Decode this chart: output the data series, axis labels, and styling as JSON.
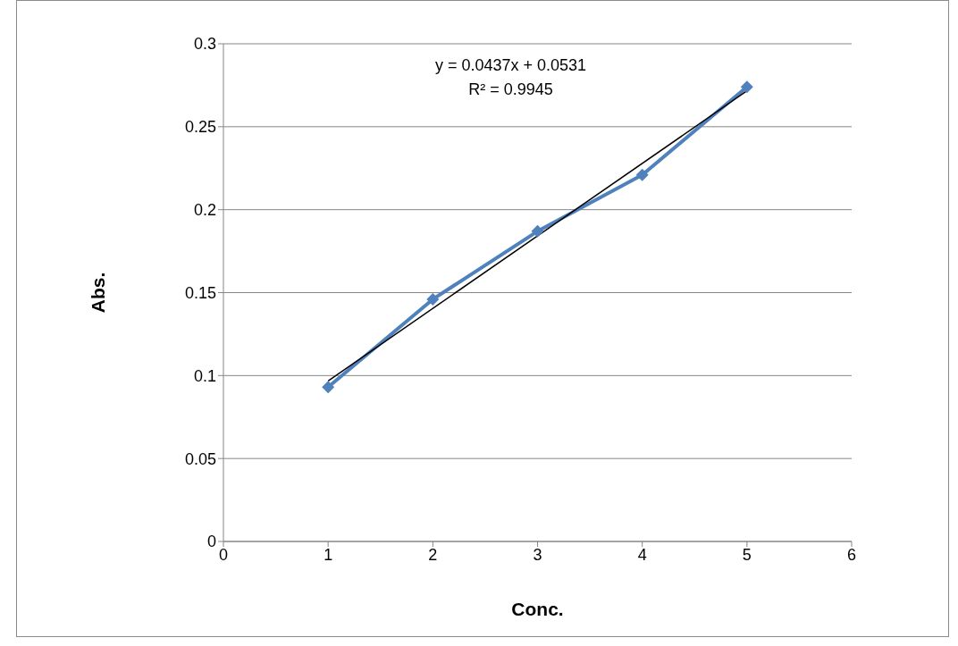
{
  "chart_data": {
    "type": "line",
    "xlabel": "Conc.",
    "ylabel": "Abs.",
    "x": [
      1,
      2,
      3,
      4,
      5
    ],
    "series": [
      {
        "color": "#4f81bd",
        "values": [
          0.093,
          0.146,
          0.187,
          0.221,
          0.274
        ],
        "marker": "diamond",
        "line_style": "solid"
      },
      {
        "color": "#000000",
        "x": [
          1,
          5
        ],
        "values": [
          0.0968,
          0.2716
        ],
        "marker": "none",
        "line_style": "solid"
      }
    ],
    "annotations": [
      "y = 0.0437x + 0.0531",
      "R² = 0.9945"
    ],
    "xlim": [
      0,
      6
    ],
    "xticks": [
      0,
      1,
      2,
      3,
      4,
      5,
      6
    ],
    "ylim": [
      0,
      0.3
    ],
    "yticks": [
      0,
      0.05,
      0.1,
      0.15,
      0.2,
      0.25,
      0.3
    ],
    "grid": "y",
    "legend": false
  }
}
